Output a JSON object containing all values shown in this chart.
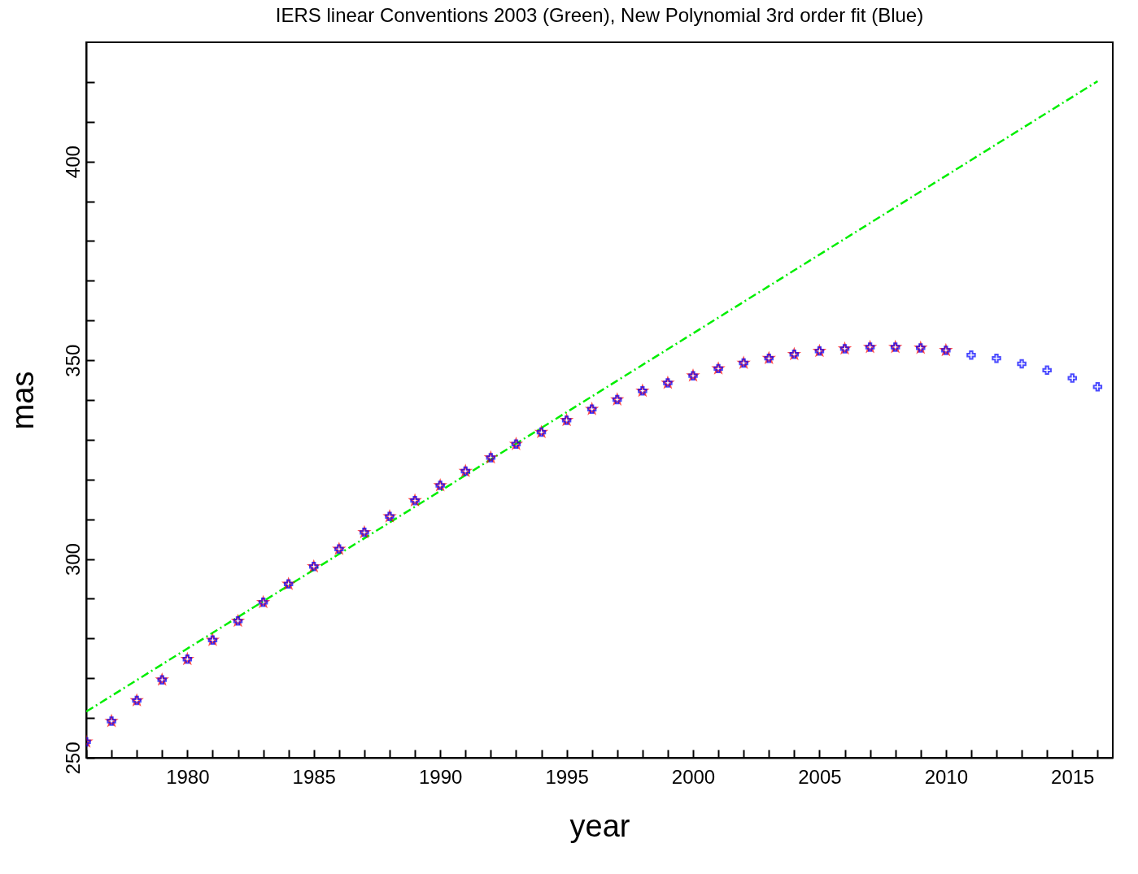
{
  "chart_data": {
    "type": "scatter",
    "title": "IERS linear Conventions 2003 (Green), New Polynomial 3rd order fit (Blue)",
    "xlabel": "year",
    "ylabel": "mas",
    "xlim": [
      1976,
      2016.6
    ],
    "ylim": [
      250,
      430
    ],
    "xticks": [
      {
        "value": 1976,
        "label": null
      },
      {
        "value": 1977,
        "label": null
      },
      {
        "value": 1978,
        "label": null
      },
      {
        "value": 1979,
        "label": null
      },
      1980,
      {
        "value": 1981,
        "label": null
      },
      {
        "value": 1982,
        "label": null
      },
      {
        "value": 1983,
        "label": null
      },
      {
        "value": 1984,
        "label": null
      },
      1985,
      {
        "value": 1986,
        "label": null
      },
      {
        "value": 1987,
        "label": null
      },
      {
        "value": 1988,
        "label": null
      },
      {
        "value": 1989,
        "label": null
      },
      1990,
      {
        "value": 1991,
        "label": null
      },
      {
        "value": 1992,
        "label": null
      },
      {
        "value": 1993,
        "label": null
      },
      {
        "value": 1994,
        "label": null
      },
      1995,
      {
        "value": 1996,
        "label": null
      },
      {
        "value": 1997,
        "label": null
      },
      {
        "value": 1998,
        "label": null
      },
      {
        "value": 1999,
        "label": null
      },
      2000,
      {
        "value": 2001,
        "label": null
      },
      {
        "value": 2002,
        "label": null
      },
      {
        "value": 2003,
        "label": null
      },
      {
        "value": 2004,
        "label": null
      },
      2005,
      {
        "value": 2006,
        "label": null
      },
      {
        "value": 2007,
        "label": null
      },
      {
        "value": 2008,
        "label": null
      },
      {
        "value": 2009,
        "label": null
      },
      2010,
      {
        "value": 2011,
        "label": null
      },
      {
        "value": 2012,
        "label": null
      },
      {
        "value": 2013,
        "label": null
      },
      {
        "value": 2014,
        "label": null
      },
      2015,
      {
        "value": 2016,
        "label": null
      }
    ],
    "yticks": [
      250,
      {
        "value": 260,
        "label": null
      },
      {
        "value": 270,
        "label": null
      },
      {
        "value": 280,
        "label": null
      },
      {
        "value": 290,
        "label": null
      },
      300,
      {
        "value": 310,
        "label": null
      },
      {
        "value": 320,
        "label": null
      },
      {
        "value": 330,
        "label": null
      },
      {
        "value": 340,
        "label": null
      },
      350,
      {
        "value": 360,
        "label": null
      },
      {
        "value": 370,
        "label": null
      },
      {
        "value": 380,
        "label": null
      },
      {
        "value": 390,
        "label": null
      },
      400,
      {
        "value": 410,
        "label": null
      },
      {
        "value": 420,
        "label": null
      }
    ],
    "grid": false,
    "series": [
      {
        "type": "line",
        "color": "#00ee00",
        "line_style": "dashed",
        "x": [
          1976,
          2016
        ],
        "values": [
          261.6,
          420.2
        ]
      },
      {
        "color": "#ff0000",
        "marker": "star",
        "x": [
          1976,
          1977,
          1978,
          1979,
          1980,
          1981,
          1982,
          1983,
          1984,
          1985,
          1986,
          1987,
          1988,
          1989,
          1990,
          1991,
          1992,
          1993,
          1994,
          1995,
          1996,
          1997,
          1998,
          1999,
          2000,
          2001,
          2002,
          2003,
          2004,
          2005,
          2006,
          2007,
          2008,
          2009,
          2010
        ],
        "values": [
          254,
          259.2,
          264.4,
          269.6,
          274.8,
          279.6,
          284.4,
          289.1,
          293.7,
          298.1,
          302.5,
          306.7,
          310.7,
          314.7,
          318.5,
          322.1,
          325.5,
          328.9,
          331.9,
          334.9,
          337.7,
          340.1,
          342.3,
          344.3,
          346.1,
          347.9,
          349.3,
          350.5,
          351.5,
          352.3,
          352.9,
          353.3,
          353.3,
          353.1,
          352.5
        ]
      },
      {
        "color": "#0000ff",
        "marker": "cross",
        "x": [
          1976,
          1977,
          1978,
          1979,
          1980,
          1981,
          1982,
          1983,
          1984,
          1985,
          1986,
          1987,
          1988,
          1989,
          1990,
          1991,
          1992,
          1993,
          1994,
          1995,
          1996,
          1997,
          1998,
          1999,
          2000,
          2001,
          2002,
          2003,
          2004,
          2005,
          2006,
          2007,
          2008,
          2009,
          2010,
          2011,
          2012,
          2013,
          2014,
          2015,
          2016
        ],
        "values": [
          254,
          259.2,
          264.4,
          269.6,
          274.8,
          279.6,
          284.4,
          289.1,
          293.7,
          298.1,
          302.5,
          306.7,
          310.7,
          314.7,
          318.5,
          322.1,
          325.5,
          328.9,
          331.9,
          334.9,
          337.7,
          340.1,
          342.3,
          344.3,
          346.1,
          347.9,
          349.3,
          350.5,
          351.5,
          352.3,
          352.9,
          353.3,
          353.3,
          353.1,
          352.5,
          351.3,
          350.5,
          349.1,
          347.5,
          345.5,
          343.3
        ]
      }
    ]
  }
}
